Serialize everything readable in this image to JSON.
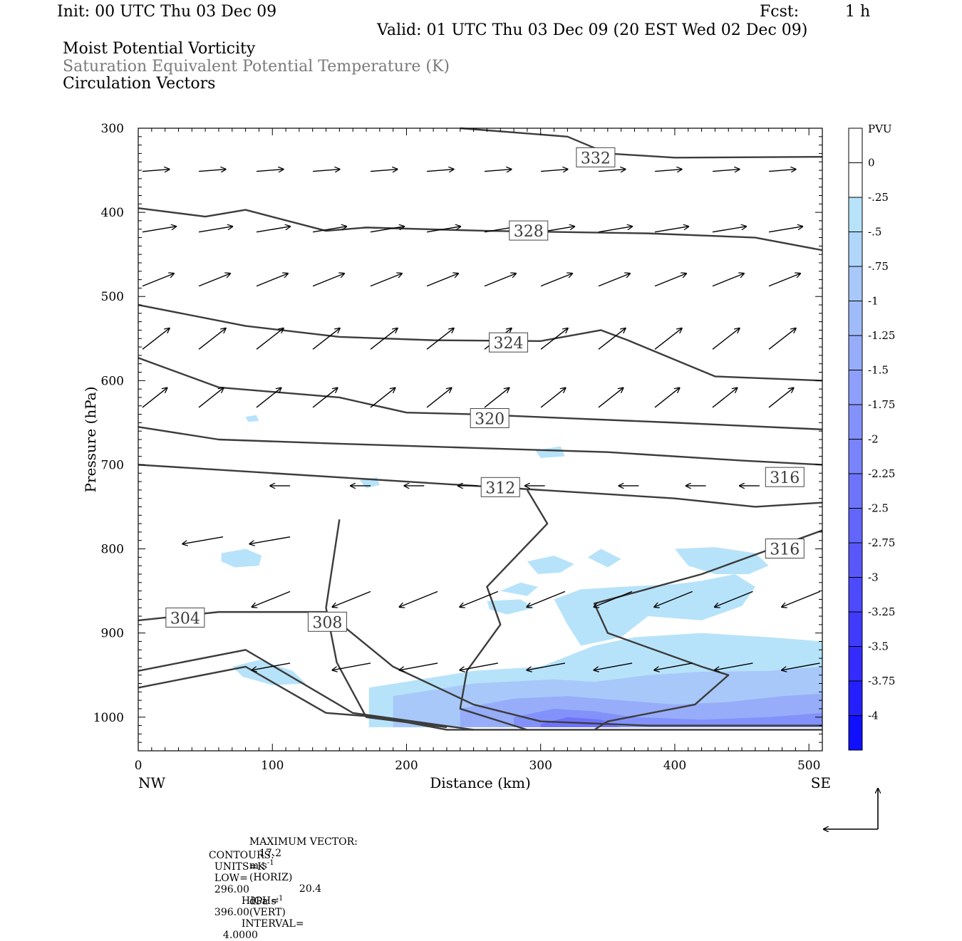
{
  "header": {
    "init": "Init: 00 UTC Thu 03 Dec 09",
    "fcst_label": "Fcst:",
    "fcst_value": "1 h",
    "valid": "Valid: 01 UTC Thu 03 Dec 09 (20 EST Wed 02 Dec 09)"
  },
  "fields": {
    "line1": "Moist Potential Vorticity",
    "line2": "Saturation Equivalent Potential Temperature (K)",
    "line3": "Circulation Vectors"
  },
  "chart_data": {
    "type": "contour",
    "xlabel": "Distance (km)",
    "ylabel": "Pressure (hPa)",
    "x_ticks": [
      0,
      100,
      200,
      300,
      400,
      500
    ],
    "x_tick_labels": [
      "0",
      "100",
      "200",
      "300",
      "400",
      "500"
    ],
    "y_ticks": [
      300,
      400,
      500,
      600,
      700,
      800,
      900,
      1000
    ],
    "y_tick_labels": [
      "300",
      "400",
      "500",
      "600",
      "700",
      "800",
      "900",
      "1000"
    ],
    "xlim": [
      0,
      510
    ],
    "ylim": [
      300,
      1040
    ],
    "y_reversed": true,
    "endpoints": {
      "left": "NW",
      "right": "SE"
    },
    "colorbar": {
      "title": "PVU",
      "labels": [
        "0",
        "-.25",
        "-.5",
        "-.75",
        "-1",
        "-1.25",
        "-1.5",
        "-1.75",
        "-2",
        "-2.25",
        "-2.5",
        "-2.75",
        "-3",
        "-3.25",
        "-3.5",
        "-3.75",
        "-4"
      ],
      "colors": [
        "#ffffff",
        "#ffffff",
        "#b7e3fa",
        "#b0d6fa",
        "#a8c8fa",
        "#a0bbfa",
        "#97adfa",
        "#8d9ffa",
        "#8391fa",
        "#7983fa",
        "#6e74fa",
        "#6366fa",
        "#5858fa",
        "#4c4afb",
        "#403bfb",
        "#332cfc",
        "#2420fd",
        "#1010fe"
      ]
    },
    "contour_labels": [
      {
        "text": "332",
        "x": 341,
        "p": 335
      },
      {
        "text": "328",
        "x": 291,
        "p": 422
      },
      {
        "text": "324",
        "x": 276,
        "p": 555
      },
      {
        "text": "320",
        "x": 262,
        "p": 645
      },
      {
        "text": "312",
        "x": 270,
        "p": 727
      },
      {
        "text": "316",
        "x": 482,
        "p": 715
      },
      {
        "text": "316",
        "x": 482,
        "p": 800
      },
      {
        "text": "304",
        "x": 35,
        "p": 882
      },
      {
        "text": "308",
        "x": 141,
        "p": 887
      }
    ],
    "contour_lines": [
      [
        [
          240,
          300
        ],
        [
          320,
          310
        ],
        [
          350,
          330
        ],
        [
          400,
          335
        ],
        [
          510,
          334
        ]
      ],
      [
        [
          0,
          395
        ],
        [
          50,
          405
        ],
        [
          80,
          397
        ],
        [
          140,
          422
        ],
        [
          170,
          418
        ],
        [
          260,
          422
        ],
        [
          380,
          425
        ],
        [
          460,
          430
        ],
        [
          510,
          445
        ]
      ],
      [
        [
          0,
          510
        ],
        [
          80,
          535
        ],
        [
          150,
          548
        ],
        [
          220,
          552
        ],
        [
          300,
          553
        ],
        [
          345,
          540
        ],
        [
          365,
          552
        ],
        [
          430,
          595
        ],
        [
          510,
          600
        ]
      ],
      [
        [
          0,
          573
        ],
        [
          60,
          608
        ],
        [
          150,
          620
        ],
        [
          200,
          638
        ],
        [
          250,
          640
        ],
        [
          400,
          650
        ],
        [
          510,
          658
        ]
      ],
      [
        [
          0,
          655
        ],
        [
          60,
          670
        ],
        [
          150,
          675
        ],
        [
          250,
          680
        ],
        [
          350,
          685
        ],
        [
          450,
          695
        ],
        [
          510,
          700
        ]
      ],
      [
        [
          0,
          700
        ],
        [
          100,
          710
        ],
        [
          200,
          720
        ],
        [
          300,
          730
        ],
        [
          400,
          740
        ],
        [
          460,
          750
        ],
        [
          510,
          745
        ]
      ],
      [
        [
          0,
          885
        ],
        [
          60,
          875
        ],
        [
          140,
          875
        ],
        [
          190,
          940
        ],
        [
          250,
          985
        ],
        [
          300,
          1005
        ],
        [
          380,
          1010
        ],
        [
          510,
          1010
        ]
      ],
      [
        [
          0,
          965
        ],
        [
          80,
          940
        ],
        [
          140,
          995
        ],
        [
          180,
          1000
        ],
        [
          230,
          1015
        ],
        [
          510,
          1015
        ]
      ],
      [
        [
          0,
          945
        ],
        [
          80,
          920
        ],
        [
          160,
          995
        ],
        [
          250,
          1015
        ]
      ],
      [
        [
          150,
          765
        ],
        [
          140,
          870
        ],
        [
          148,
          935
        ],
        [
          170,
          1000
        ],
        [
          230,
          1012
        ]
      ],
      [
        [
          290,
          730
        ],
        [
          305,
          770
        ],
        [
          260,
          845
        ],
        [
          270,
          890
        ],
        [
          245,
          945
        ],
        [
          240,
          990
        ],
        [
          290,
          1015
        ]
      ],
      [
        [
          510,
          778
        ],
        [
          420,
          830
        ],
        [
          340,
          865
        ],
        [
          350,
          900
        ],
        [
          420,
          940
        ],
        [
          440,
          950
        ],
        [
          415,
          985
        ],
        [
          350,
          1005
        ],
        [
          340,
          1015
        ]
      ]
    ],
    "reference_vector": {
      "horiz_label": "MAXIMUM VECTOR:",
      "horiz_value": "17.2",
      "horiz_unit": "m s",
      "horiz_exp": "-1",
      "horiz_kind": "(HORIZ)",
      "vert_value": "20.4",
      "vert_unit": "dPa s",
      "vert_exp": "-1",
      "vert_kind": "(VERT)"
    },
    "contour_info": {
      "prefix": "CONTOURS:",
      "units": "UNITS=K",
      "low_label": "LOW=",
      "low_value": "296.00",
      "high_label": "HIGH=",
      "high_value": "396.00",
      "interval_label": "INTERVAL=",
      "interval_value": "4.0000"
    }
  }
}
